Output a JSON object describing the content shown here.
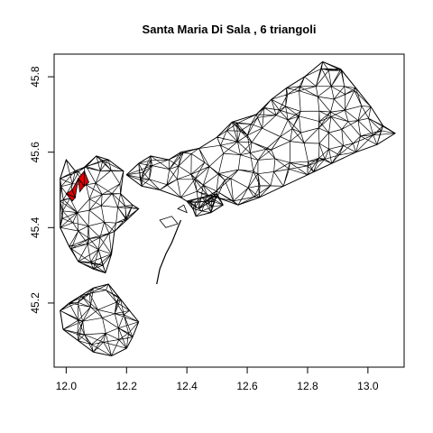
{
  "chart_data": {
    "type": "map",
    "title": "Santa Maria Di Sala ,  6  triangoli",
    "xlabel": "",
    "ylabel": "",
    "xlim": [
      11.96,
      13.12
    ],
    "ylim": [
      45.03,
      45.86
    ],
    "xticks": [
      "12.0",
      "12.2",
      "12.4",
      "12.6",
      "12.8",
      "13.0"
    ],
    "yticks": [
      "45.2",
      "45.4",
      "45.6",
      "45.8"
    ],
    "grid": false,
    "mesh_color": "#000000",
    "highlight_color": "#e00000",
    "highlighted_triangles": [
      [
        [
          12.0,
          45.49
        ],
        [
          12.02,
          45.5
        ],
        [
          12.03,
          45.48
        ]
      ],
      [
        [
          12.02,
          45.5
        ],
        [
          12.04,
          45.53
        ],
        [
          12.03,
          45.48
        ]
      ],
      [
        [
          12.04,
          45.53
        ],
        [
          12.06,
          45.55
        ],
        [
          12.06,
          45.51
        ]
      ],
      [
        [
          12.04,
          45.53
        ],
        [
          12.06,
          45.51
        ],
        [
          12.045,
          45.495
        ]
      ],
      [
        [
          12.06,
          45.51
        ],
        [
          12.075,
          45.52
        ],
        [
          12.06,
          45.55
        ]
      ],
      [
        [
          12.0,
          45.49
        ],
        [
          12.03,
          45.48
        ],
        [
          12.02,
          45.47
        ]
      ]
    ]
  }
}
